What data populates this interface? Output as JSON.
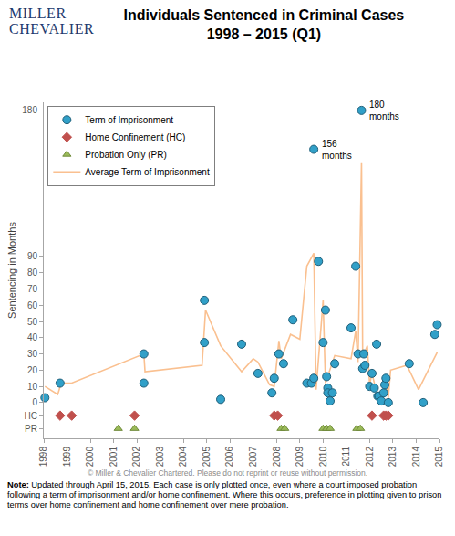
{
  "logo": [
    "MILLER",
    "CHEVALIER"
  ],
  "copyright": "© Miller & Chevalier Chartered. Please do not reprint or reuse without permission.",
  "note_label": "Note:",
  "note": "Updated through April 15, 2015. Each case is only plotted once, even where a court imposed probation following a term of imprisonment and/or home confinement.  Where this occurs, preference in plotting given to prison terms over home confinement and home confinement over mere probation.",
  "chart_data": {
    "type": "scatter",
    "title": [
      "Individuals Sentenced in Criminal Cases",
      "1998 – 2015 (Q1)"
    ],
    "y_label": "Sentencing in Months",
    "xlim": [
      1998,
      2015
    ],
    "xticks": [
      1998,
      1999,
      2000,
      2001,
      2002,
      2003,
      2004,
      2005,
      2006,
      2007,
      2008,
      2009,
      2010,
      2011,
      2012,
      2013,
      2014,
      2015
    ],
    "ylim": [
      -22,
      185
    ],
    "yticks": [
      {
        "value": -16,
        "label": "PR"
      },
      {
        "value": -8,
        "label": "HC"
      },
      0,
      10,
      20,
      30,
      40,
      50,
      60,
      70,
      80,
      90,
      180
    ],
    "grid": false,
    "legend": "top-left",
    "series": [
      {
        "name": "Term of Imprisonment",
        "type": "scatter",
        "marker": "circle",
        "color": "#31a0c8",
        "x": [
          1998.05,
          1998.7,
          2002.3,
          2002.3,
          2004.9,
          2004.9,
          2005.6,
          2006.5,
          2007.2,
          2007.8,
          2007.9,
          2008.1,
          2008.3,
          2008.7,
          2009.3,
          2009.5,
          2009.6,
          2009.6,
          2009.8,
          2010.0,
          2010.1,
          2010.15,
          2010.2,
          2010.2,
          2010.3,
          2010.4,
          2010.5,
          2011.2,
          2011.4,
          2011.5,
          2011.65,
          2011.7,
          2011.75,
          2011.8,
          2012.0,
          2012.1,
          2012.2,
          2012.3,
          2012.35,
          2012.4,
          2012.5,
          2012.6,
          2012.65,
          2012.7,
          2012.8,
          2013.7,
          2014.3,
          2014.8,
          2014.9
        ],
        "values": [
          3,
          12,
          30,
          12,
          63,
          37,
          2,
          36,
          18,
          6,
          15,
          30,
          24,
          51,
          12,
          12,
          15,
          156,
          87,
          37,
          57,
          16,
          9,
          6,
          1,
          6,
          24,
          46,
          84,
          30,
          180,
          21,
          30,
          23,
          10,
          18,
          9,
          36,
          4,
          4,
          1,
          6,
          11,
          15,
          0,
          24,
          0,
          42,
          48
        ]
      },
      {
        "name": "Home Confinement (HC)",
        "type": "scatter",
        "marker": "diamond",
        "color": "#c0504d",
        "x": [
          1998.7,
          1999.2,
          2001.9,
          2007.9,
          2008.05,
          2012.1,
          2012.6,
          2012.7,
          2012.8
        ],
        "values": [
          -8,
          -8,
          -8,
          -8,
          -8,
          -8,
          -8,
          -8,
          -8
        ]
      },
      {
        "name": "Probation Only (PR)",
        "type": "scatter",
        "marker": "triangle-up",
        "color": "#9bbb59",
        "x": [
          2001.2,
          2001.9,
          2008.2,
          2008.35,
          2010.0,
          2010.15,
          2010.3,
          2011.45,
          2011.6
        ],
        "values": [
          -16,
          -16,
          -16,
          -16,
          -16,
          -16,
          -16,
          -16,
          -16
        ]
      },
      {
        "name": "Average Term of Imprisonment",
        "type": "line",
        "line_style": "solid",
        "color": "#fac090",
        "x": [
          1998.05,
          1998.6,
          1998.75,
          1999.2,
          2002.3,
          2002.35,
          2004.8,
          2004.95,
          2005.6,
          2006.5,
          2007.0,
          2007.2,
          2007.7,
          2007.9,
          2008.1,
          2008.2,
          2008.6,
          2009.0,
          2009.3,
          2009.6,
          2009.7,
          2010.0,
          2010.1,
          2010.3,
          2010.5,
          2011.2,
          2011.4,
          2011.5,
          2011.65,
          2011.7,
          2011.9,
          2012.0,
          2012.1,
          2012.2,
          2012.35,
          2012.5,
          2012.6,
          2012.7,
          2012.8,
          2012.9,
          2013.6,
          2014.1,
          2014.9
        ],
        "values": [
          10,
          5,
          12,
          12,
          30,
          19,
          23,
          57,
          35,
          19,
          27,
          25,
          11,
          10,
          38,
          27,
          42,
          39,
          84,
          92,
          8,
          63,
          12,
          20,
          29,
          27,
          44,
          25,
          148,
          28,
          35,
          11,
          18,
          12,
          5,
          5,
          4,
          12,
          3,
          20,
          23,
          8,
          31
        ]
      }
    ],
    "annotations": [
      {
        "text": "156 months",
        "x": 2009.6,
        "y": 156
      },
      {
        "text": "180 months",
        "x": 2011.65,
        "y": 180
      }
    ]
  }
}
